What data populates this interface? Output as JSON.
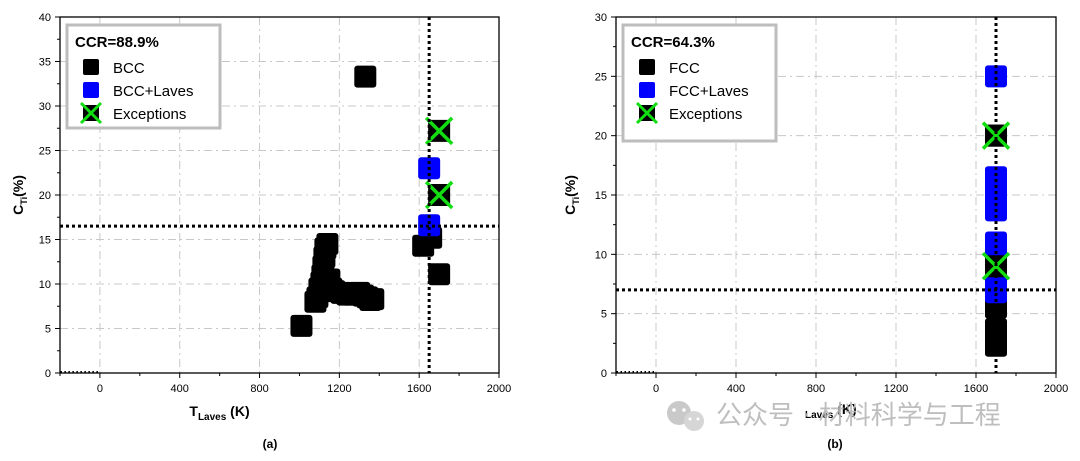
{
  "watermark": {
    "text": "公众号 · 材料科学与工程"
  },
  "chart_data": [
    {
      "type": "scatter",
      "panel_label": "(a)",
      "annotation": "CCR=88.9%",
      "xlabel": "T",
      "xlabel_sub": "Laves",
      "xlabel_unit": " (K)",
      "ylabel": "C",
      "ylabel_sub": "Ti",
      "ylabel_unit": "(%)",
      "xlim": [
        -200,
        2000
      ],
      "ylim": [
        0,
        40
      ],
      "xticks": [
        0,
        400,
        800,
        1200,
        1600,
        2000
      ],
      "yticks": [
        0,
        5,
        10,
        15,
        20,
        25,
        30,
        35,
        40
      ],
      "grid": true,
      "legend_position": "top-left",
      "threshold_x": 1650,
      "threshold_y": 16.5,
      "series": [
        {
          "name": "BCC",
          "color": "#000000",
          "marker": "square",
          "points": [
            [
              1010,
              5.3
            ],
            [
              1080,
              8
            ],
            [
              1090,
              8.5
            ],
            [
              1100,
              9.5
            ],
            [
              1110,
              10.2
            ],
            [
              1115,
              11
            ],
            [
              1120,
              12
            ],
            [
              1125,
              13
            ],
            [
              1130,
              14
            ],
            [
              1140,
              14.5
            ],
            [
              1150,
              10.5
            ],
            [
              1160,
              9.5
            ],
            [
              1175,
              9.2
            ],
            [
              1210,
              9
            ],
            [
              1240,
              8.8
            ],
            [
              1270,
              8.8
            ],
            [
              1300,
              9
            ],
            [
              1320,
              8.7
            ],
            [
              1340,
              8.5
            ],
            [
              1355,
              8.2
            ],
            [
              1370,
              8.3
            ],
            [
              1330,
              33.3
            ],
            [
              1620,
              14.3
            ],
            [
              1660,
              15.2
            ],
            [
              1700,
              11.1
            ]
          ]
        },
        {
          "name": "BCC+Laves",
          "color": "#0000ff",
          "marker": "square",
          "points": [
            [
              1650,
              23
            ],
            [
              1650,
              16.6
            ]
          ]
        },
        {
          "name": "Exceptions",
          "color": "#00dd00",
          "marker": "x-box",
          "points": [
            [
              1700,
              27.2
            ],
            [
              1700,
              20
            ]
          ]
        }
      ]
    },
    {
      "type": "scatter",
      "panel_label": "(b)",
      "annotation": "CCR=64.3%",
      "xlabel": "",
      "ylabel": "C",
      "ylabel_sub": "Ti",
      "ylabel_unit": "(%)",
      "xlim": [
        -200,
        2000
      ],
      "ylim": [
        0,
        30
      ],
      "xticks": [
        0,
        400,
        800,
        1200,
        1600,
        2000
      ],
      "yticks": [
        0,
        5,
        10,
        15,
        20,
        25,
        30
      ],
      "grid": true,
      "legend_position": "top-left",
      "threshold_x": 1700,
      "threshold_y": 7,
      "series": [
        {
          "name": "FCC",
          "color": "#000000",
          "marker": "square",
          "points": [
            [
              1700,
              2.3
            ],
            [
              1700,
              3.3
            ],
            [
              1700,
              3.7
            ],
            [
              1700,
              5.5
            ],
            [
              1700,
              6.2
            ],
            [
              1700,
              20
            ],
            [
              1700,
              9
            ]
          ]
        },
        {
          "name": "FCC+Laves",
          "color": "#0000ff",
          "marker": "square",
          "points": [
            [
              1700,
              25
            ],
            [
              1700,
              16.5
            ],
            [
              1700,
              15.5
            ],
            [
              1700,
              14.5
            ],
            [
              1700,
              13.7
            ],
            [
              1700,
              11
            ],
            [
              1700,
              10
            ],
            [
              1700,
              8
            ],
            [
              1700,
              7
            ],
            [
              1700,
              6.8
            ]
          ]
        },
        {
          "name": "Exceptions",
          "color": "#00dd00",
          "marker": "x-box",
          "points": [
            [
              1700,
              20
            ],
            [
              1700,
              9
            ]
          ]
        }
      ]
    }
  ]
}
